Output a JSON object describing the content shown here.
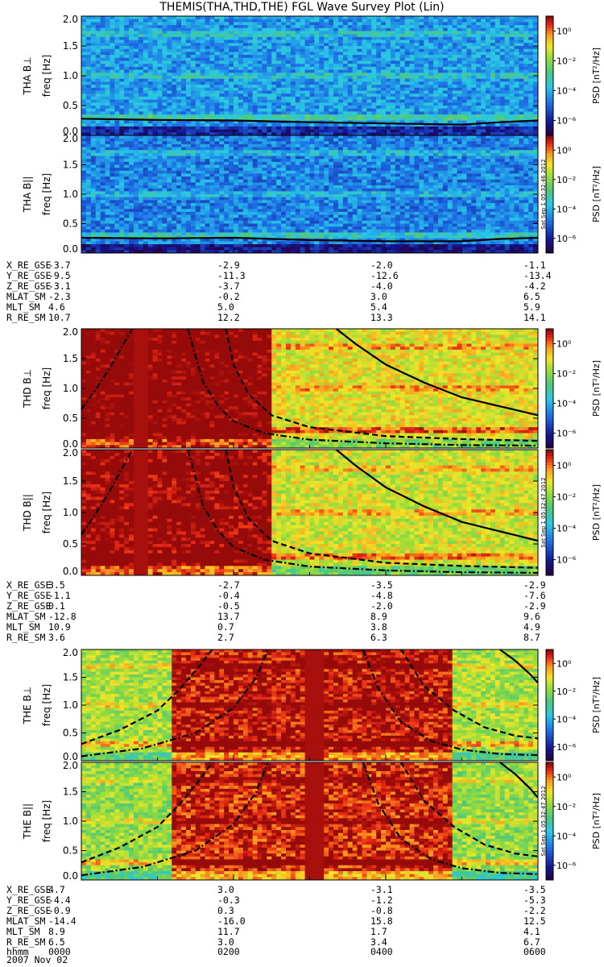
{
  "title": "THEMIS(THA,THD,THE) FGL Wave Survey Plot (Lin)",
  "colors": {
    "spectral_low": "#1d1d7a",
    "spectral_high": "#a11a1a",
    "background": "#5cc8a0"
  },
  "panels": [
    {
      "id": "tha_perp",
      "ylabel": "THA B⊥",
      "stamp": ""
    },
    {
      "id": "tha_par",
      "ylabel": "THA B||",
      "stamp": "Sat Sep  1 05:32:46 2012"
    },
    {
      "id": "thd_perp",
      "ylabel": "THD B⊥",
      "stamp": ""
    },
    {
      "id": "thd_par",
      "ylabel": "THD B||",
      "stamp": "Sat Sep  1 05:32:47 2012"
    },
    {
      "id": "the_perp",
      "ylabel": "THE B⊥",
      "stamp": ""
    },
    {
      "id": "the_par",
      "ylabel": "THE B||",
      "stamp": "Sat Sep  1 05:32:47 2012"
    }
  ],
  "yaxis": {
    "label": "freq [Hz]",
    "ticks": [
      "2.0",
      "1.5",
      "1.0",
      "0.5",
      "0.0"
    ]
  },
  "colorbar": {
    "label": "PSD [nT²/Hz]",
    "ticks": [
      "10⁰",
      "10⁻²",
      "10⁻⁴",
      "10⁻⁶"
    ]
  },
  "ephemeris": [
    {
      "rows": [
        [
          "X_RE_GSE",
          "-3.7",
          "-2.9",
          "-2.0",
          "-1.1"
        ],
        [
          "Y_RE_GSE",
          "-9.5",
          "-11.3",
          "-12.6",
          "-13.4"
        ],
        [
          "Z_RE_GSE",
          "-3.1",
          "-3.7",
          "-4.0",
          "-4.2"
        ],
        [
          "MLAT_SM",
          "-2.3",
          "-0.2",
          "3.0",
          "6.5"
        ],
        [
          "MLT_SM",
          "4.6",
          "5.0",
          "5.4",
          "5.9"
        ],
        [
          "R_RE_SM",
          "10.7",
          "12.2",
          "13.3",
          "14.1"
        ]
      ]
    },
    {
      "rows": [
        [
          "X_RE_GSE",
          "3.5",
          "-2.7",
          "-3.5",
          "-2.9"
        ],
        [
          "Y_RE_GSE",
          "-1.1",
          "-0.4",
          "-4.8",
          "-7.6"
        ],
        [
          "Z_RE_GSE",
          "0.1",
          "-0.5",
          "-2.0",
          "-2.9"
        ],
        [
          "MLAT_SM",
          "-12.8",
          "13.7",
          "8.9",
          "9.6"
        ],
        [
          "MLT_SM",
          "10.9",
          "0.7",
          "3.8",
          "4.9"
        ],
        [
          "R_RE_SM",
          "3.6",
          "2.7",
          "6.3",
          "8.7"
        ]
      ]
    },
    {
      "rows": [
        [
          "X_RE_GSE",
          "4.7",
          "3.0",
          "-3.1",
          "-3.5"
        ],
        [
          "Y_RE_GSE",
          "-4.4",
          "-0.3",
          "-1.2",
          "-5.3"
        ],
        [
          "Z_RE_GSE",
          "-0.9",
          "0.3",
          "-0.8",
          "-2.2"
        ],
        [
          "MLAT_SM",
          "-14.4",
          "-16.0",
          "15.8",
          "12.5"
        ],
        [
          "MLT_SM",
          "8.9",
          "11.7",
          "1.7",
          "4.1"
        ],
        [
          "R_RE_SM",
          "6.5",
          "3.0",
          "3.4",
          "6.7"
        ],
        [
          "hhmm",
          "0000",
          "0200",
          "0400",
          "0600"
        ]
      ],
      "date": "2007 Nov 02"
    }
  ],
  "chart_data": {
    "type": "heatmap",
    "title": "THEMIS(THA,THD,THE) FGL Wave Survey Plot (Lin)",
    "xlabel": "hhmm",
    "x_ticks": [
      "0000",
      "0200",
      "0400",
      "0600"
    ],
    "date": "2007 Nov 02",
    "ylabel": "freq [Hz]",
    "ylim": [
      0,
      2.0
    ],
    "y_ticks": [
      0.0,
      0.5,
      1.0,
      1.5,
      2.0
    ],
    "colorbar_label": "PSD [nT²/Hz]",
    "colorbar_log_range": [
      -7,
      1
    ],
    "panels": [
      {
        "name": "THA B⊥",
        "level": -4.2,
        "dark_band": null,
        "hot_stripe": null,
        "lines": [
          {
            "style": "solid",
            "x": [
              0,
              1,
              2,
              3,
              4,
              5,
              5.5,
              6
            ],
            "y": [
              0.28,
              0.26,
              0.25,
              0.22,
              0.2,
              0.18,
              0.22,
              0.25
            ]
          }
        ]
      },
      {
        "name": "THA B||",
        "level": -4.5,
        "dark_band": null,
        "hot_stripe": null,
        "lines": [
          {
            "style": "solid",
            "x": [
              0,
              1,
              2,
              3,
              4,
              5,
              5.5,
              6
            ],
            "y": [
              0.26,
              0.25,
              0.26,
              0.22,
              0.2,
              0.2,
              0.24,
              0.26
            ]
          }
        ]
      },
      {
        "name": "THD B⊥",
        "level": -0.6,
        "warm_until": 2.5,
        "hot_stripe": [
          0.68,
          0.9
        ],
        "lines": [
          {
            "style": "dashdot",
            "x": [
              0,
              0.2,
              0.4,
              0.6,
              0.67
            ],
            "y": [
              0.65,
              1.0,
              1.4,
              1.85,
              2.0
            ]
          },
          {
            "style": "dashdot",
            "x": [
              1.4,
              1.6,
              1.8,
              2.0,
              2.4,
              3.0,
              4.0,
              5.0,
              6.0
            ],
            "y": [
              2.0,
              1.1,
              0.7,
              0.45,
              0.25,
              0.14,
              0.08,
              0.05,
              0.04
            ]
          },
          {
            "style": "dashed",
            "x": [
              1.9,
              2.0,
              2.2,
              2.5,
              3.0,
              4.0,
              5.0,
              6.0
            ],
            "y": [
              2.0,
              1.4,
              0.9,
              0.55,
              0.35,
              0.2,
              0.15,
              0.12
            ]
          },
          {
            "style": "solid",
            "x": [
              3.35,
              3.6,
              4.0,
              4.5,
              5.0,
              5.5,
              6.0
            ],
            "y": [
              2.0,
              1.75,
              1.4,
              1.1,
              0.85,
              0.7,
              0.55
            ]
          }
        ]
      },
      {
        "name": "THD B||",
        "level": -0.8,
        "warm_until": 2.5,
        "hot_stripe": [
          0.68,
          0.9
        ],
        "lines": [
          {
            "style": "dashdot",
            "x": [
              0,
              0.2,
              0.4,
              0.6,
              0.67
            ],
            "y": [
              0.65,
              1.0,
              1.4,
              1.85,
              2.0
            ]
          },
          {
            "style": "dashdot",
            "x": [
              1.4,
              1.6,
              1.8,
              2.0,
              2.4,
              3.0,
              4.0,
              5.0,
              6.0
            ],
            "y": [
              2.0,
              1.1,
              0.7,
              0.45,
              0.25,
              0.14,
              0.08,
              0.05,
              0.04
            ]
          },
          {
            "style": "dashed",
            "x": [
              1.9,
              2.0,
              2.2,
              2.5,
              3.0,
              4.0,
              5.0,
              6.0
            ],
            "y": [
              2.0,
              1.4,
              0.9,
              0.55,
              0.35,
              0.2,
              0.15,
              0.12
            ]
          },
          {
            "style": "solid",
            "x": [
              3.35,
              3.6,
              4.0,
              4.5,
              5.0,
              5.5,
              6.0
            ],
            "y": [
              2.0,
              1.75,
              1.4,
              1.1,
              0.85,
              0.7,
              0.55
            ]
          }
        ]
      },
      {
        "name": "THE B⊥",
        "level": -1.2,
        "warm_from": 1.2,
        "warm_until": 4.9,
        "hot_stripe": [
          2.95,
          3.2
        ],
        "lines": [
          {
            "style": "dashed",
            "x": [
              0,
              0.5,
              1.0,
              1.3,
              1.55,
              1.72
            ],
            "y": [
              0.3,
              0.55,
              0.9,
              1.3,
              1.7,
              2.0
            ]
          },
          {
            "style": "dashdot",
            "x": [
              0,
              0.8,
              1.5,
              2.0,
              2.3,
              2.45
            ],
            "y": [
              0.08,
              0.22,
              0.5,
              0.95,
              1.5,
              2.0
            ]
          },
          {
            "style": "dashdot",
            "x": [
              3.7,
              3.9,
              4.2,
              4.6,
              5.0,
              5.5,
              6.0
            ],
            "y": [
              2.0,
              1.3,
              0.7,
              0.35,
              0.2,
              0.12,
              0.1
            ]
          },
          {
            "style": "dashed",
            "x": [
              4.2,
              4.5,
              4.9,
              5.3,
              5.7,
              6.0
            ],
            "y": [
              2.0,
              1.35,
              0.9,
              0.6,
              0.45,
              0.4
            ]
          },
          {
            "style": "solid",
            "x": [
              5.5,
              5.7,
              5.9,
              6.0
            ],
            "y": [
              2.0,
              1.8,
              1.55,
              1.4
            ]
          }
        ]
      },
      {
        "name": "THE B||",
        "level": -1.4,
        "warm_from": 1.2,
        "warm_until": 4.9,
        "hot_stripe": [
          2.95,
          3.2
        ],
        "lines": [
          {
            "style": "dashed",
            "x": [
              0,
              0.5,
              1.0,
              1.3,
              1.55,
              1.72
            ],
            "y": [
              0.3,
              0.55,
              0.9,
              1.3,
              1.7,
              2.0
            ]
          },
          {
            "style": "dashdot",
            "x": [
              0,
              0.8,
              1.5,
              2.0,
              2.3,
              2.45
            ],
            "y": [
              0.08,
              0.22,
              0.5,
              0.95,
              1.5,
              2.0
            ]
          },
          {
            "style": "dashdot",
            "x": [
              3.7,
              3.9,
              4.2,
              4.6,
              5.0,
              5.5,
              6.0
            ],
            "y": [
              2.0,
              1.3,
              0.7,
              0.35,
              0.2,
              0.12,
              0.1
            ]
          },
          {
            "style": "dashed",
            "x": [
              4.2,
              4.5,
              4.9,
              5.3,
              5.7,
              6.0
            ],
            "y": [
              2.0,
              1.35,
              0.9,
              0.6,
              0.45,
              0.4
            ]
          },
          {
            "style": "solid",
            "x": [
              5.5,
              5.7,
              5.9,
              6.0
            ],
            "y": [
              2.0,
              1.8,
              1.55,
              1.4
            ]
          }
        ]
      }
    ]
  }
}
